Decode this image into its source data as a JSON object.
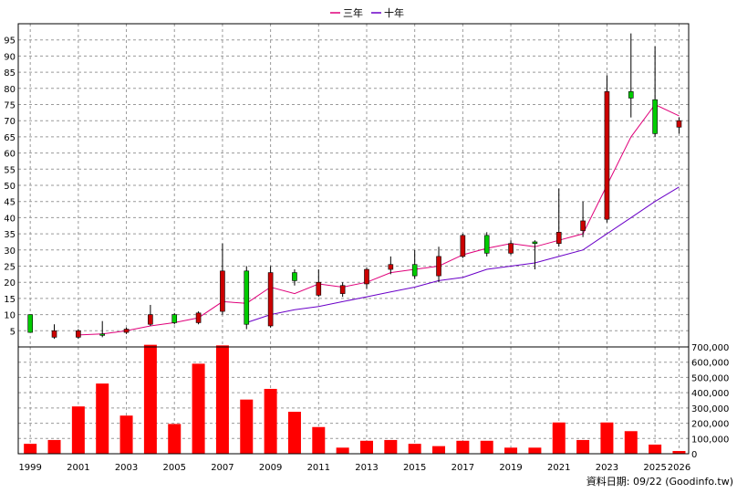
{
  "chart_data": {
    "type": "candlestick+bar",
    "legend": [
      {
        "label": "三年",
        "color": "#e0007a"
      },
      {
        "label": "十年",
        "color": "#6a00c8"
      }
    ],
    "price_axis": {
      "ylim": [
        0,
        100
      ],
      "ticks": [
        5,
        10,
        15,
        20,
        25,
        30,
        35,
        40,
        45,
        50,
        55,
        60,
        65,
        70,
        75,
        80,
        85,
        90,
        95
      ]
    },
    "volume_axis": {
      "ylim": [
        0,
        700000
      ],
      "ticks": [
        "0",
        "100,000",
        "200,000",
        "300,000",
        "400,000",
        "500,000",
        "600,000",
        "700,000"
      ],
      "tick_values": [
        0,
        100000,
        200000,
        300000,
        400000,
        500000,
        600000,
        700000
      ]
    },
    "x_tick_labels": [
      "1999",
      "2001",
      "2003",
      "2005",
      "2007",
      "2009",
      "2011",
      "2013",
      "2015",
      "2017",
      "2019",
      "2021",
      "2023",
      "2025",
      "2026"
    ],
    "candles": [
      {
        "year": 1999,
        "open": 4.5,
        "close": 10,
        "high": 10,
        "low": 4.5
      },
      {
        "year": 2000,
        "open": 5,
        "close": 3,
        "high": 7,
        "low": 2.5
      },
      {
        "year": 2001,
        "open": 5,
        "close": 3,
        "high": 5.5,
        "low": 2.5
      },
      {
        "year": 2002,
        "open": 4,
        "close": 4,
        "high": 8,
        "low": 3
      },
      {
        "year": 2003,
        "open": 5.5,
        "close": 4.5,
        "high": 6,
        "low": 4
      },
      {
        "year": 2004,
        "open": 10,
        "close": 7,
        "high": 13,
        "low": 6.5
      },
      {
        "year": 2005,
        "open": 7.5,
        "close": 10,
        "high": 10.5,
        "low": 7
      },
      {
        "year": 2006,
        "open": 10.5,
        "close": 7.5,
        "high": 11,
        "low": 7
      },
      {
        "year": 2007,
        "open": 23.5,
        "close": 11,
        "high": 32,
        "low": 10
      },
      {
        "year": 2008,
        "open": 7,
        "close": 23.5,
        "high": 25,
        "low": 5.5
      },
      {
        "year": 2009,
        "open": 23,
        "close": 6.5,
        "high": 25,
        "low": 6
      },
      {
        "year": 2010,
        "open": 20.5,
        "close": 23,
        "high": 24,
        "low": 19
      },
      {
        "year": 2011,
        "open": 20,
        "close": 16,
        "high": 24,
        "low": 15.5
      },
      {
        "year": 2012,
        "open": 19,
        "close": 16.5,
        "high": 20,
        "low": 15.5
      },
      {
        "year": 2013,
        "open": 24,
        "close": 19.5,
        "high": 24.5,
        "low": 18
      },
      {
        "year": 2014,
        "open": 25.5,
        "close": 24,
        "high": 28,
        "low": 22.5
      },
      {
        "year": 2015,
        "open": 22,
        "close": 25.5,
        "high": 30,
        "low": 21
      },
      {
        "year": 2016,
        "open": 28,
        "close": 22,
        "high": 31,
        "low": 20
      },
      {
        "year": 2017,
        "open": 34.5,
        "close": 28,
        "high": 35,
        "low": 27.5
      },
      {
        "year": 2018,
        "open": 29,
        "close": 34.5,
        "high": 35.5,
        "low": 28
      },
      {
        "year": 2019,
        "open": 32,
        "close": 29,
        "high": 33,
        "low": 28.5
      },
      {
        "year": 2020,
        "open": 32,
        "close": 32.5,
        "high": 33,
        "low": 24
      },
      {
        "year": 2021,
        "open": 35.5,
        "close": 32,
        "high": 49,
        "low": 31
      },
      {
        "year": 2022,
        "open": 39,
        "close": 36,
        "high": 45,
        "low": 34
      },
      {
        "year": 2023,
        "open": 79,
        "close": 39.5,
        "high": 84,
        "low": 38.5
      },
      {
        "year": 2024,
        "open": 77,
        "close": 79,
        "high": 97,
        "low": 71
      },
      {
        "year": 2025,
        "open": 66,
        "close": 76.5,
        "high": 93,
        "low": 65
      },
      {
        "year": 2026,
        "open": 70,
        "close": 68,
        "high": 71,
        "low": 66
      }
    ],
    "series": [
      {
        "name": "三年",
        "points": [
          [
            2001,
            3.7
          ],
          [
            2002,
            4
          ],
          [
            2003,
            5
          ],
          [
            2004,
            6.5
          ],
          [
            2005,
            7.5
          ],
          [
            2006,
            9
          ],
          [
            2007,
            14
          ],
          [
            2008,
            13.5
          ],
          [
            2009,
            18.5
          ],
          [
            2010,
            16.5
          ],
          [
            2011,
            19.5
          ],
          [
            2012,
            18.5
          ],
          [
            2013,
            20
          ],
          [
            2014,
            23
          ],
          [
            2015,
            24
          ],
          [
            2016,
            25
          ],
          [
            2017,
            28.5
          ],
          [
            2018,
            30.5
          ],
          [
            2019,
            32
          ],
          [
            2020,
            31
          ],
          [
            2021,
            33
          ],
          [
            2022,
            35
          ],
          [
            2023,
            50
          ],
          [
            2024,
            65
          ],
          [
            2025,
            75
          ],
          [
            2026,
            71.5
          ]
        ]
      },
      {
        "name": "十年",
        "points": [
          [
            2008,
            7.5
          ],
          [
            2009,
            10
          ],
          [
            2010,
            11.5
          ],
          [
            2011,
            12.5
          ],
          [
            2012,
            14
          ],
          [
            2013,
            15.5
          ],
          [
            2014,
            17
          ],
          [
            2015,
            18.5
          ],
          [
            2016,
            20.5
          ],
          [
            2017,
            21.5
          ],
          [
            2018,
            24
          ],
          [
            2019,
            25
          ],
          [
            2020,
            26
          ],
          [
            2021,
            28
          ],
          [
            2022,
            30
          ],
          [
            2023,
            35
          ],
          [
            2024,
            40
          ],
          [
            2025,
            45
          ],
          [
            2026,
            49.5
          ]
        ]
      }
    ],
    "volume": [
      {
        "year": 1999,
        "value": 65000
      },
      {
        "year": 2000,
        "value": 90000
      },
      {
        "year": 2001,
        "value": 310000
      },
      {
        "year": 2002,
        "value": 460000
      },
      {
        "year": 2003,
        "value": 250000
      },
      {
        "year": 2004,
        "value": 720000
      },
      {
        "year": 2005,
        "value": 195000
      },
      {
        "year": 2006,
        "value": 590000
      },
      {
        "year": 2007,
        "value": 710000
      },
      {
        "year": 2008,
        "value": 355000
      },
      {
        "year": 2009,
        "value": 425000
      },
      {
        "year": 2010,
        "value": 275000
      },
      {
        "year": 2011,
        "value": 175000
      },
      {
        "year": 2012,
        "value": 40000
      },
      {
        "year": 2013,
        "value": 85000
      },
      {
        "year": 2014,
        "value": 90000
      },
      {
        "year": 2015,
        "value": 65000
      },
      {
        "year": 2016,
        "value": 50000
      },
      {
        "year": 2017,
        "value": 85000
      },
      {
        "year": 2018,
        "value": 85000
      },
      {
        "year": 2019,
        "value": 40000
      },
      {
        "year": 2020,
        "value": 40000
      },
      {
        "year": 2021,
        "value": 205000
      },
      {
        "year": 2022,
        "value": 90000
      },
      {
        "year": 2023,
        "value": 205000
      },
      {
        "year": 2024,
        "value": 148000
      },
      {
        "year": 2025,
        "value": 60000
      },
      {
        "year": 2026,
        "value": 18000
      }
    ],
    "colors": {
      "up": "#00cc00",
      "down": "#cc0000",
      "volume": "#ff0000",
      "wick": "#000000",
      "grid": "#9a9a9a"
    }
  },
  "footer": {
    "source_text": "資料日期: 09/22  (Goodinfo.tw)"
  }
}
